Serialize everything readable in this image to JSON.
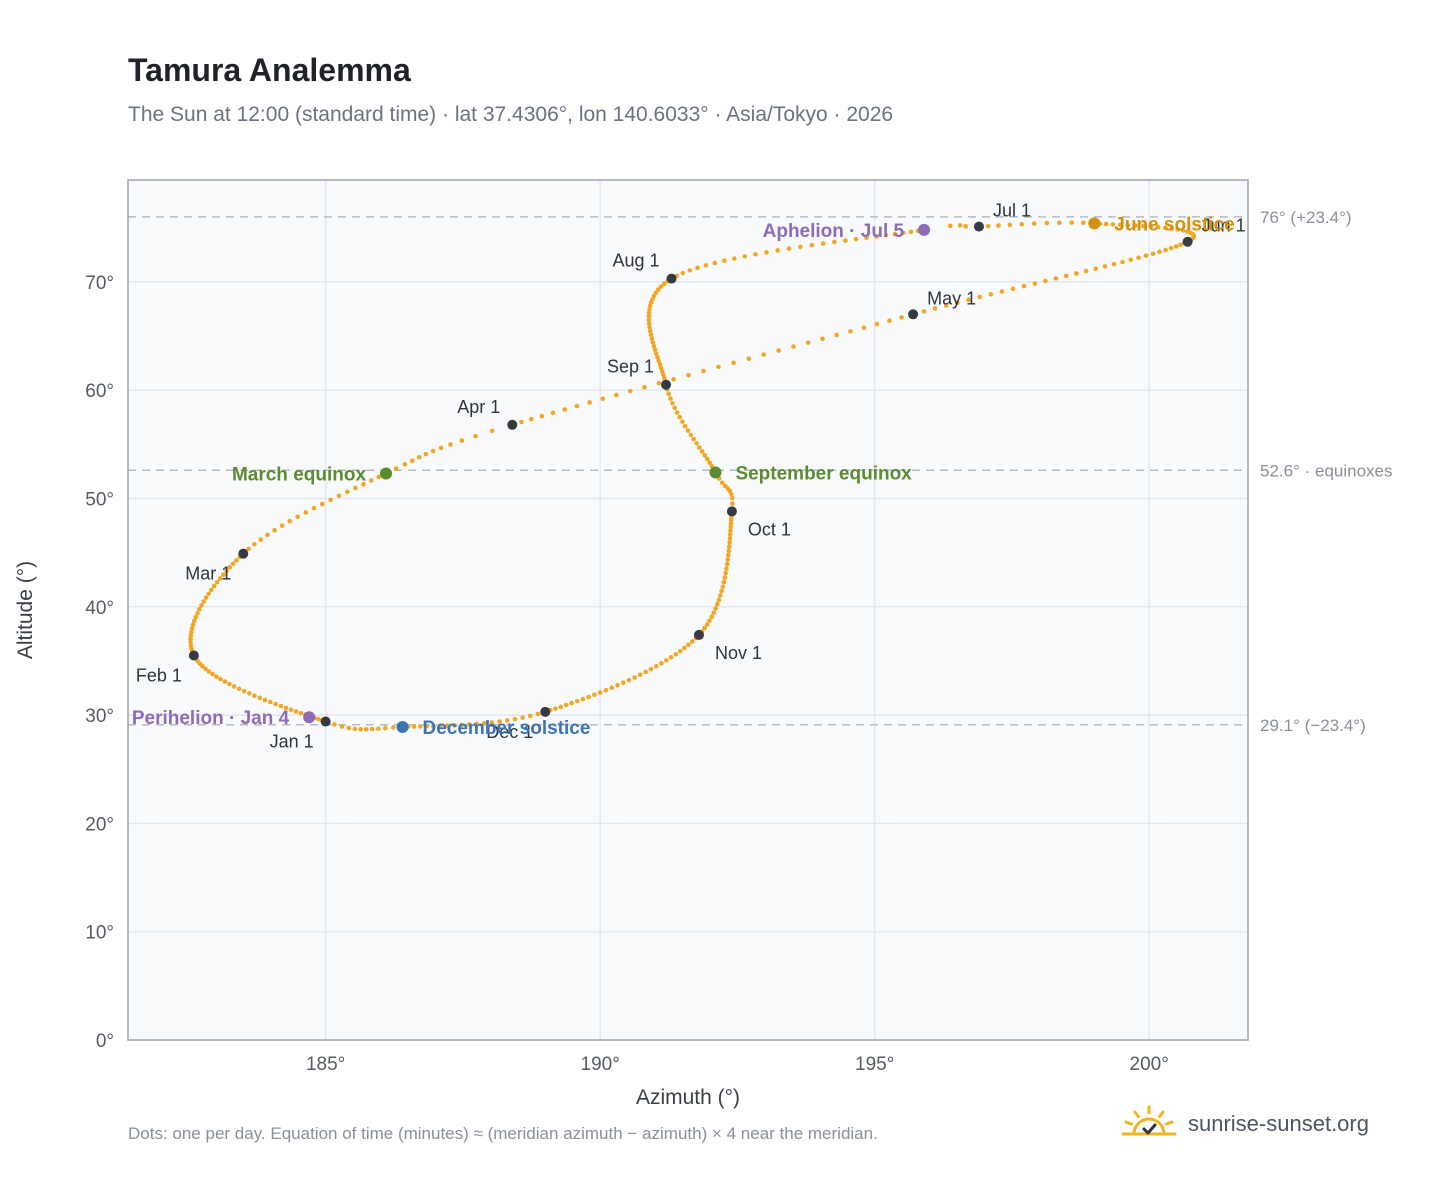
{
  "title": "Tamura Analemma",
  "subtitle": "The Sun at 12:00 (standard time) · lat 37.4306°, lon 140.6033° · Asia/Tokyo · 2026",
  "footnote": "Dots: one per day. Equation of time (minutes) ≈ (meridian azimuth − azimuth) × 4 near the meridian.",
  "brand": {
    "name": "sunrise-sunset.org",
    "icon": "sun-logo-icon"
  },
  "colors": {
    "path": "#f2a623",
    "month_marker": "#353a42",
    "equinox": "#5a8c2f",
    "june_solstice": "#d4900e",
    "december_solstice": "#3c74b4",
    "apsis": "#8e6bb8",
    "plot_bg": "#f8fafc",
    "grid": "#e3e8ee",
    "ref_line": "#b4bcc6"
  },
  "chart_data": {
    "type": "scatter",
    "xlabel": "Azimuth (°)",
    "ylabel": "Altitude (°)",
    "xlim": [
      181.4,
      201.8
    ],
    "ylim": [
      0,
      79.4
    ],
    "xticks": [
      185,
      190,
      195,
      200
    ],
    "xtick_labels": [
      "185°",
      "190°",
      "195°",
      "200°"
    ],
    "yticks": [
      0,
      10,
      20,
      30,
      40,
      50,
      60,
      70
    ],
    "ytick_labels": [
      "0°",
      "10°",
      "20°",
      "30°",
      "40°",
      "50°",
      "60°",
      "70°"
    ],
    "grid": true,
    "reference_lines": [
      {
        "y": 76.0,
        "label": "76° (+23.4°)"
      },
      {
        "y": 52.6,
        "label": "52.6° · equinoxes"
      },
      {
        "y": 29.1,
        "label": "29.1° (−23.4°)"
      }
    ],
    "path_anchors": [
      {
        "doy": 1,
        "az": 185.0,
        "alt": 29.4
      },
      {
        "doy": 32,
        "az": 182.6,
        "alt": 35.5
      },
      {
        "doy": 60,
        "az": 183.5,
        "alt": 44.9
      },
      {
        "doy": 79,
        "az": 186.1,
        "alt": 52.3
      },
      {
        "doy": 91,
        "az": 188.4,
        "alt": 56.8
      },
      {
        "doy": 121,
        "az": 195.7,
        "alt": 67.0
      },
      {
        "doy": 152,
        "az": 200.7,
        "alt": 73.7
      },
      {
        "doy": 172,
        "az": 199.0,
        "alt": 75.4
      },
      {
        "doy": 182,
        "az": 196.9,
        "alt": 75.1
      },
      {
        "doy": 186,
        "az": 195.9,
        "alt": 74.8
      },
      {
        "doy": 213,
        "az": 191.3,
        "alt": 70.3
      },
      {
        "doy": 244,
        "az": 191.2,
        "alt": 60.5
      },
      {
        "doy": 265,
        "az": 192.1,
        "alt": 52.4
      },
      {
        "doy": 274,
        "az": 192.4,
        "alt": 48.8
      },
      {
        "doy": 305,
        "az": 191.8,
        "alt": 37.4
      },
      {
        "doy": 335,
        "az": 189.0,
        "alt": 30.3
      },
      {
        "doy": 355,
        "az": 186.4,
        "alt": 28.9
      },
      {
        "doy": 366,
        "az": 185.0,
        "alt": 29.4
      }
    ],
    "months": [
      {
        "label": "Jan 1",
        "az": 185.0,
        "alt": 29.4,
        "pos": "below-left"
      },
      {
        "label": "Feb 1",
        "az": 182.6,
        "alt": 35.5,
        "pos": "below-left"
      },
      {
        "label": "Mar 1",
        "az": 183.5,
        "alt": 44.9,
        "pos": "below-left"
      },
      {
        "label": "Apr 1",
        "az": 188.4,
        "alt": 56.8,
        "pos": "above-left"
      },
      {
        "label": "May 1",
        "az": 195.7,
        "alt": 67.0,
        "pos": "above-right"
      },
      {
        "label": "Jun 1",
        "az": 200.7,
        "alt": 73.7,
        "pos": "above-right"
      },
      {
        "label": "Jul 1",
        "az": 196.9,
        "alt": 75.1,
        "pos": "above-right"
      },
      {
        "label": "Aug 1",
        "az": 191.3,
        "alt": 70.3,
        "pos": "above-left"
      },
      {
        "label": "Sep 1",
        "az": 191.2,
        "alt": 60.5,
        "pos": "above-left"
      },
      {
        "label": "Oct 1",
        "az": 192.4,
        "alt": 48.8,
        "pos": "below-right"
      },
      {
        "label": "Nov 1",
        "az": 191.8,
        "alt": 37.4,
        "pos": "below-right"
      },
      {
        "label": "Dec 1",
        "az": 189.0,
        "alt": 30.3,
        "pos": "below-left"
      }
    ],
    "events": [
      {
        "label": "March equinox",
        "az": 186.1,
        "alt": 52.3,
        "color": "#5a8c2f",
        "pos": "left"
      },
      {
        "label": "September equinox",
        "az": 192.1,
        "alt": 52.4,
        "color": "#5a8c2f",
        "pos": "right"
      },
      {
        "label": "June solstice",
        "az": 199.0,
        "alt": 75.4,
        "color": "#d4900e",
        "pos": "right"
      },
      {
        "label": "December solstice",
        "az": 186.4,
        "alt": 28.9,
        "color": "#3c74b4",
        "pos": "right"
      },
      {
        "label": "Aphelion · Jul 5",
        "az": 195.9,
        "alt": 74.8,
        "color": "#8e6bb8",
        "pos": "left"
      },
      {
        "label": "Perihelion · Jan 4",
        "az": 184.7,
        "alt": 29.8,
        "color": "#8e6bb8",
        "pos": "left"
      }
    ]
  }
}
